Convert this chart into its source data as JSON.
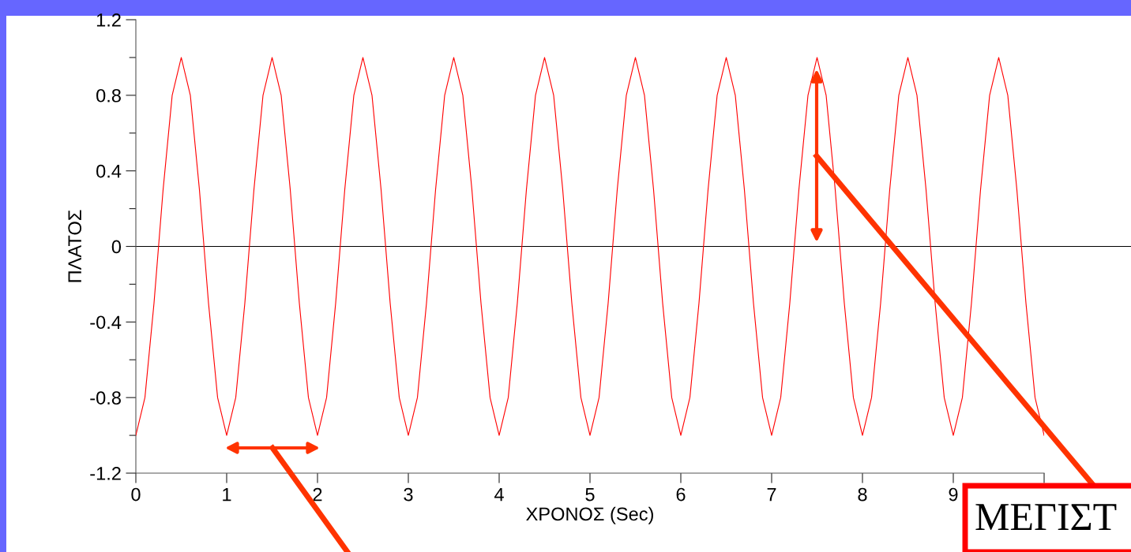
{
  "chart_data": {
    "type": "line",
    "xlabel": "ΧΡΟΝΟΣ (Sec)",
    "ylabel": "ΠΛΑΤΟΣ",
    "x": [
      0,
      0.1,
      0.2,
      0.3,
      0.4,
      0.5,
      0.6,
      0.7,
      0.8,
      0.9,
      1,
      1.1,
      1.2,
      1.3,
      1.4,
      1.5,
      1.6,
      1.7,
      1.8,
      1.9,
      2,
      2.1,
      2.2,
      2.3,
      2.4,
      2.5,
      2.6,
      2.7,
      2.8,
      2.9,
      3,
      3.1,
      3.2,
      3.3,
      3.4,
      3.5,
      3.6,
      3.7,
      3.8,
      3.9,
      4,
      4.1,
      4.2,
      4.3,
      4.4,
      4.5,
      4.6,
      4.7,
      4.8,
      4.9,
      5,
      5.1,
      5.2,
      5.3,
      5.4,
      5.5,
      5.6,
      5.7,
      5.8,
      5.9,
      6,
      6.1,
      6.2,
      6.3,
      6.4,
      6.5,
      6.6,
      6.7,
      6.8,
      6.9,
      7,
      7.1,
      7.2,
      7.3,
      7.4,
      7.5,
      7.6,
      7.7,
      7.8,
      7.9,
      8,
      8.1,
      8.2,
      8.3,
      8.4,
      8.5,
      8.6,
      8.7,
      8.8,
      8.9,
      9,
      9.1,
      9.2,
      9.3,
      9.4,
      9.5,
      9.6,
      9.7,
      9.8,
      9.9,
      10
    ],
    "series": [
      {
        "color": "#ff0000",
        "values": [
          -1,
          -0.8,
          -0.3,
          0.3,
          0.8,
          1,
          0.8,
          0.3,
          -0.3,
          -0.8,
          -1,
          -0.8,
          -0.3,
          0.3,
          0.8,
          1,
          0.8,
          0.3,
          -0.3,
          -0.8,
          -1,
          -0.8,
          -0.3,
          0.3,
          0.8,
          1,
          0.8,
          0.3,
          -0.3,
          -0.8,
          -1,
          -0.8,
          -0.3,
          0.3,
          0.8,
          1,
          0.8,
          0.3,
          -0.3,
          -0.8,
          -1,
          -0.8,
          -0.3,
          0.3,
          0.8,
          1,
          0.8,
          0.3,
          -0.3,
          -0.8,
          -1,
          -0.8,
          -0.3,
          0.3,
          0.8,
          1,
          0.8,
          0.3,
          -0.3,
          -0.8,
          -1,
          -0.8,
          -0.3,
          0.3,
          0.8,
          1,
          0.8,
          0.3,
          -0.3,
          -0.8,
          -1,
          -0.8,
          -0.3,
          0.3,
          0.8,
          1,
          0.8,
          0.3,
          -0.3,
          -0.8,
          -1,
          -0.8,
          -0.3,
          0.3,
          0.8,
          1,
          0.8,
          0.3,
          -0.3,
          -0.8,
          -1,
          -0.8,
          -0.3,
          0.3,
          0.8,
          1,
          0.8,
          0.3,
          -0.3,
          -0.8,
          -1
        ]
      }
    ],
    "xlim": [
      0,
      10
    ],
    "xticks": [
      0,
      1,
      2,
      3,
      4,
      5,
      6,
      7,
      8,
      9,
      {
        "value": 10,
        "label": null
      }
    ],
    "ylim": [
      -1.2,
      1.2
    ],
    "yticks": [
      -1.2,
      {
        "value": -1.0,
        "label": null
      },
      -0.8,
      {
        "value": -0.6,
        "label": null
      },
      -0.4,
      {
        "value": -0.2,
        "label": null
      },
      0,
      {
        "value": 0.2,
        "label": null
      },
      0.4,
      {
        "value": 0.6,
        "label": null
      },
      0.8,
      {
        "value": 1.0,
        "label": null
      },
      1.2
    ],
    "ref_lines": [
      {
        "axis": "y",
        "value": 0,
        "color": "#000000"
      }
    ],
    "annotations": [
      "ΜΕΓΙΣΤ"
    ],
    "grid": false,
    "legend": false,
    "marker": "none",
    "line_style": "solid"
  }
}
